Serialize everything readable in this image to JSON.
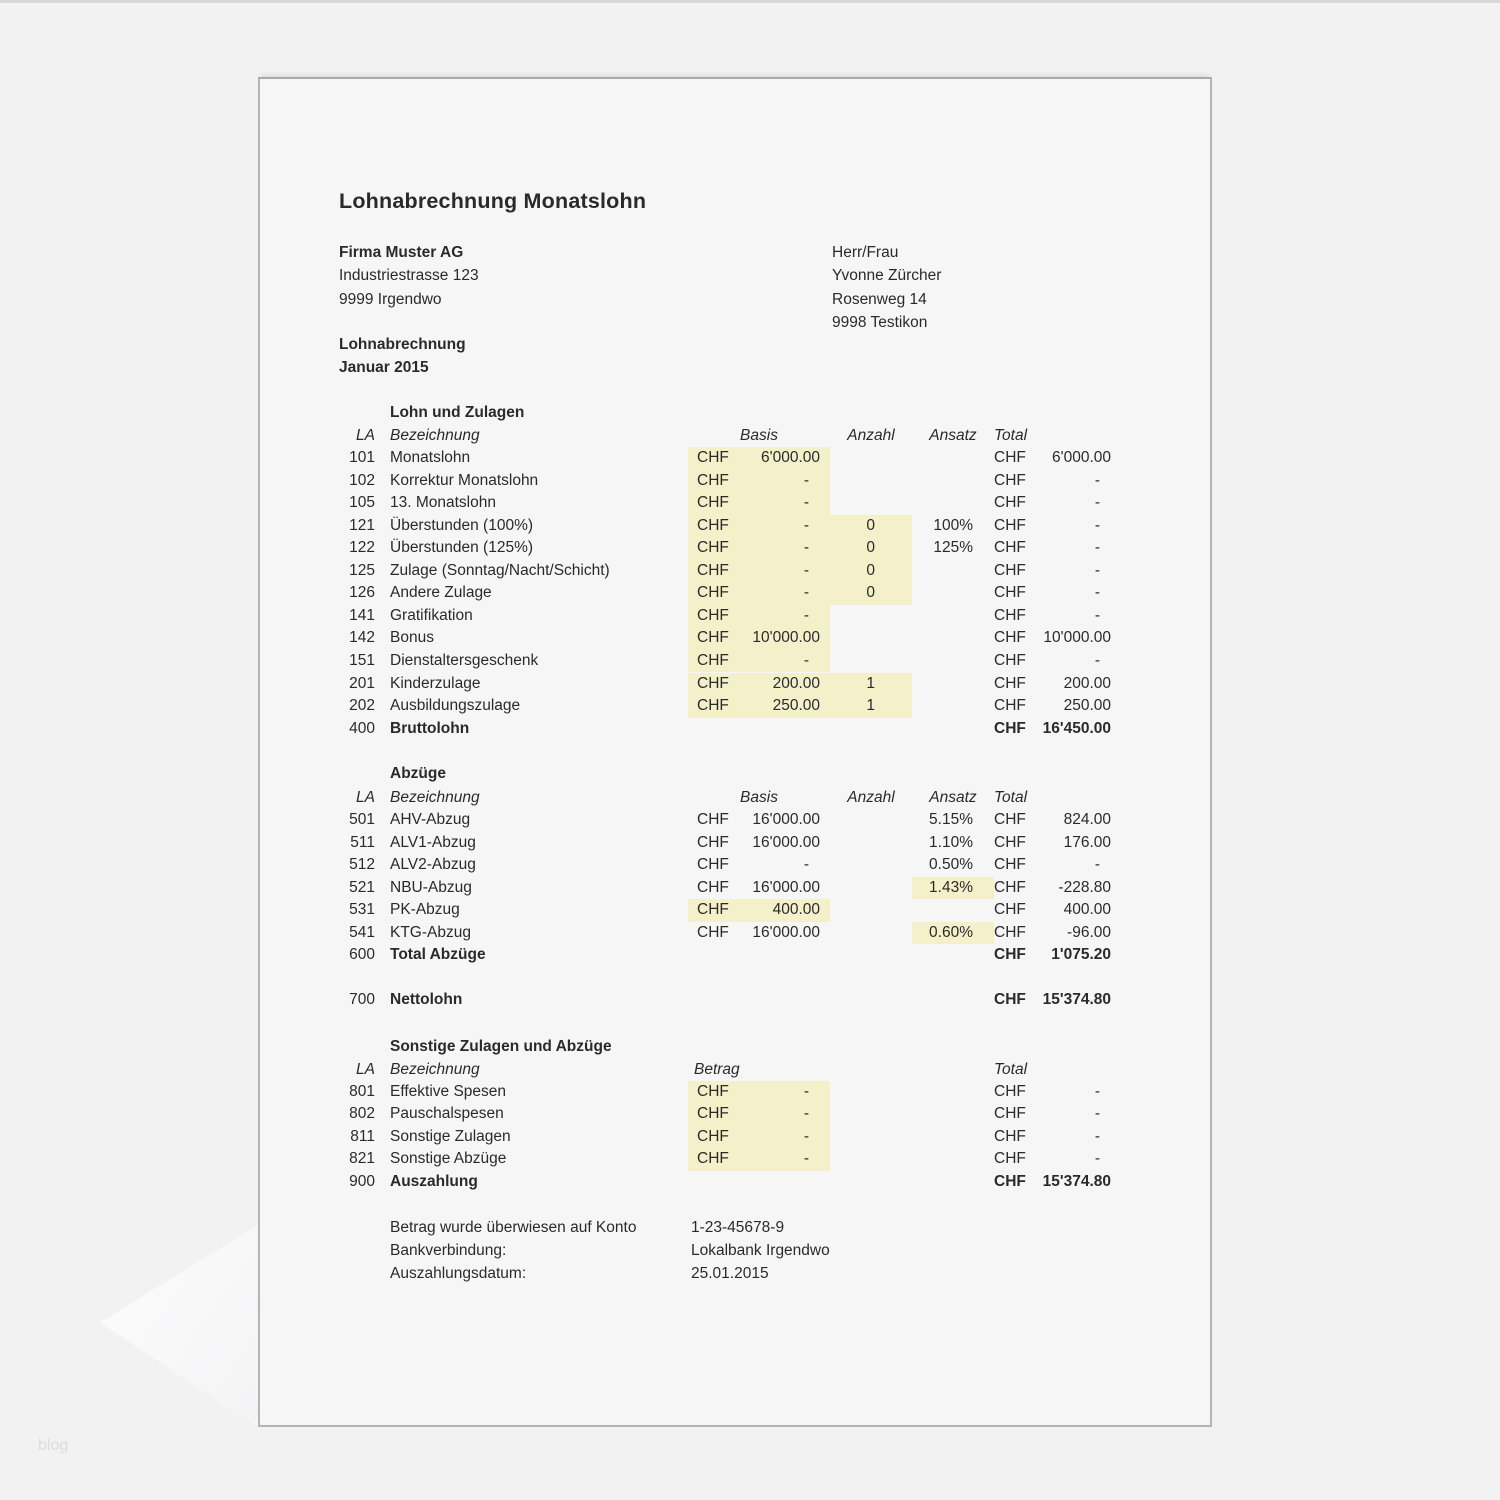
{
  "background": {
    "watermark": "blog"
  },
  "page": {
    "title": "Lohnabrechnung Monatslohn",
    "currency": "CHF",
    "highlight_color": "#f4f1ca",
    "employer": {
      "name": "Firma Muster AG",
      "address_line1": "Industriestrasse 123",
      "address_line2": "9999 Irgendwo"
    },
    "employee": {
      "salutation": "Herr/Frau",
      "name": "Yvonne Zürcher",
      "address_line1": "Rosenweg 14",
      "address_line2": "9998 Testikon"
    },
    "period_label": "Lohnabrechnung",
    "period_value": "Januar 2015",
    "sections": [
      {
        "title": "Lohn und Zulagen",
        "headers": {
          "la": "LA",
          "name": "Bezeichnung",
          "basis": "Basis",
          "anzahl": "Anzahl",
          "ansatz": "Ansatz",
          "total": "Total"
        },
        "rows": [
          {
            "la": "101",
            "name": "Monatslohn",
            "basis": "6'000.00",
            "basis_hl": true,
            "total": "6'000.00"
          },
          {
            "la": "102",
            "name": "Korrektur Monatslohn",
            "basis": "-",
            "basis_hl": true,
            "total": "-"
          },
          {
            "la": "105",
            "name": "13. Monatslohn",
            "basis": "-",
            "basis_hl": true,
            "total": "-"
          },
          {
            "la": "121",
            "name": "Überstunden (100%)",
            "basis": "-",
            "basis_hl": true,
            "anzahl": "0",
            "anzahl_hl": true,
            "ansatz": "100%",
            "total": "-"
          },
          {
            "la": "122",
            "name": "Überstunden (125%)",
            "basis": "-",
            "basis_hl": true,
            "anzahl": "0",
            "anzahl_hl": true,
            "ansatz": "125%",
            "total": "-"
          },
          {
            "la": "125",
            "name": "Zulage (Sonntag/Nacht/Schicht)",
            "basis": "-",
            "basis_hl": true,
            "anzahl": "0",
            "anzahl_hl": true,
            "total": "-"
          },
          {
            "la": "126",
            "name": "Andere Zulage",
            "basis": "-",
            "basis_hl": true,
            "anzahl": "0",
            "anzahl_hl": true,
            "total": "-"
          },
          {
            "la": "141",
            "name": "Gratifikation",
            "basis": "-",
            "basis_hl": true,
            "total": "-"
          },
          {
            "la": "142",
            "name": "Bonus",
            "basis": "10'000.00",
            "basis_hl": true,
            "total": "10'000.00"
          },
          {
            "la": "151",
            "name": "Dienstaltersgeschenk",
            "basis": "-",
            "basis_hl": true,
            "total": "-"
          },
          {
            "la": "201",
            "name": "Kinderzulage",
            "basis": "200.00",
            "basis_hl": true,
            "anzahl": "1",
            "anzahl_hl": true,
            "total": "200.00"
          },
          {
            "la": "202",
            "name": "Ausbildungszulage",
            "basis": "250.00",
            "basis_hl": true,
            "anzahl": "1",
            "anzahl_hl": true,
            "total": "250.00"
          },
          {
            "la": "400",
            "name": "Bruttolohn",
            "bold": true,
            "total": "16'450.00"
          }
        ]
      },
      {
        "title": "Abzüge",
        "headers": {
          "la": "LA",
          "name": "Bezeichnung",
          "basis": "Basis",
          "anzahl": "Anzahl",
          "ansatz": "Ansatz",
          "total": "Total"
        },
        "rows": [
          {
            "la": "501",
            "name": "AHV-Abzug",
            "basis": "16'000.00",
            "ansatz": "5.15%",
            "total": "824.00"
          },
          {
            "la": "511",
            "name": "ALV1-Abzug",
            "basis": "16'000.00",
            "ansatz": "1.10%",
            "total": "176.00"
          },
          {
            "la": "512",
            "name": "ALV2-Abzug",
            "basis": "-",
            "ansatz": "0.50%",
            "total": "-"
          },
          {
            "la": "521",
            "name": "NBU-Abzug",
            "basis": "16'000.00",
            "ansatz": "1.43%",
            "ansatz_hl": true,
            "total": "-228.80"
          },
          {
            "la": "531",
            "name": "PK-Abzug",
            "basis": "400.00",
            "basis_hl": true,
            "total": "400.00"
          },
          {
            "la": "541",
            "name": "KTG-Abzug",
            "basis": "16'000.00",
            "ansatz": "0.60%",
            "ansatz_hl": true,
            "total": "-96.00"
          },
          {
            "la": "600",
            "name": "Total Abzüge",
            "bold": true,
            "total": "1'075.20"
          }
        ]
      },
      {
        "rows": [
          {
            "la": "700",
            "name": "Nettolohn",
            "bold": true,
            "total": "15'374.80"
          }
        ]
      },
      {
        "title": "Sonstige Zulagen und Abzüge",
        "headers": {
          "la": "LA",
          "name": "Bezeichnung",
          "basis": "Betrag",
          "total": "Total"
        },
        "basis_header_align": "left",
        "rows": [
          {
            "la": "801",
            "name": "Effektive Spesen",
            "basis": "-",
            "basis_hl": true,
            "total": "-"
          },
          {
            "la": "802",
            "name": "Pauschalspesen",
            "basis": "-",
            "basis_hl": true,
            "total": "-"
          },
          {
            "la": "811",
            "name": "Sonstige Zulagen",
            "basis": "-",
            "basis_hl": true,
            "total": "-"
          },
          {
            "la": "821",
            "name": "Sonstige Abzüge",
            "basis": "-",
            "basis_hl": true,
            "total": "-"
          },
          {
            "la": "900",
            "name": "Auszahlung",
            "bold": true,
            "total": "15'374.80"
          }
        ]
      }
    ],
    "footer": [
      {
        "label": "Betrag wurde überwiesen auf Konto",
        "value": "1-23-45678-9"
      },
      {
        "label": "Bankverbindung:",
        "value": "Lokalbank Irgendwo"
      },
      {
        "label": "Auszahlungsdatum:",
        "value": "25.01.2015"
      }
    ]
  }
}
